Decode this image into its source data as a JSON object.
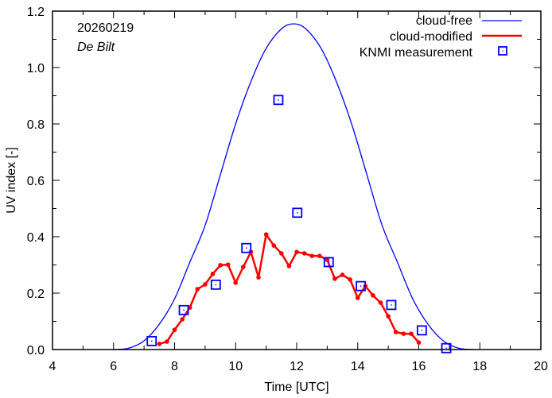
{
  "chart_data": {
    "type": "line",
    "title": "",
    "annotations": {
      "date": "20260219",
      "location": "De Bilt"
    },
    "xlabel": "Time  [UTC]",
    "ylabel": "UV index  [-]",
    "xlim": [
      4,
      20
    ],
    "ylim": [
      0,
      1.2
    ],
    "x_ticks": [
      4,
      6,
      8,
      10,
      12,
      14,
      16,
      18,
      20
    ],
    "x_tick_labels": [
      "4",
      "6",
      "8",
      "10",
      "12",
      "14",
      "16",
      "18",
      "20"
    ],
    "y_ticks": [
      0,
      0.2,
      0.4,
      0.6,
      0.8,
      1.0,
      1.2
    ],
    "y_tick_labels": [
      "0.0",
      "0.2",
      "0.4",
      "0.6",
      "0.8",
      "1.0",
      "1.2"
    ],
    "grid": false,
    "legend_position": "top-right",
    "series": [
      {
        "name": "cloud-free",
        "style": "line",
        "color": "#0000ff",
        "x": [
          6.0,
          6.5,
          7.0,
          7.5,
          8.0,
          8.5,
          9.0,
          9.5,
          10.0,
          10.5,
          11.0,
          11.5,
          11.9,
          12.3,
          12.8,
          13.3,
          13.8,
          14.3,
          14.8,
          15.3,
          15.8,
          16.3,
          16.8,
          17.3,
          17.8
        ],
        "y": [
          0.0,
          0.005,
          0.031,
          0.09,
          0.18,
          0.31,
          0.44,
          0.62,
          0.8,
          0.95,
          1.068,
          1.137,
          1.155,
          1.137,
          1.068,
          0.95,
          0.8,
          0.62,
          0.44,
          0.31,
          0.18,
          0.09,
          0.031,
          0.005,
          0.0
        ]
      },
      {
        "name": "cloud-modified",
        "style": "line-points",
        "color": "#ff0000",
        "x": [
          7.5,
          7.75,
          8.0,
          8.25,
          8.5,
          8.75,
          9.0,
          9.25,
          9.5,
          9.75,
          10.0,
          10.25,
          10.5,
          10.75,
          11.0,
          11.25,
          11.5,
          11.75,
          12.0,
          12.25,
          12.5,
          12.75,
          13.0,
          13.25,
          13.5,
          13.75,
          14.0,
          14.25,
          14.5,
          14.75,
          15.0,
          15.25,
          15.5,
          15.75,
          16.0
        ],
        "y": [
          0.02,
          0.028,
          0.07,
          0.107,
          0.149,
          0.214,
          0.231,
          0.268,
          0.299,
          0.301,
          0.237,
          0.293,
          0.346,
          0.256,
          0.408,
          0.369,
          0.341,
          0.296,
          0.346,
          0.341,
          0.332,
          0.332,
          0.318,
          0.251,
          0.265,
          0.248,
          0.183,
          0.225,
          0.192,
          0.166,
          0.118,
          0.062,
          0.056,
          0.056,
          0.025
        ]
      },
      {
        "name": "KNMI measurement",
        "style": "points",
        "color": "#0000ff",
        "x": [
          7.25,
          8.3,
          9.35,
          10.35,
          11.4,
          12.02,
          13.05,
          14.1,
          15.1,
          16.1,
          16.9
        ],
        "y": [
          0.03,
          0.14,
          0.23,
          0.36,
          0.885,
          0.485,
          0.31,
          0.225,
          0.158,
          0.068,
          0.005
        ]
      }
    ]
  }
}
